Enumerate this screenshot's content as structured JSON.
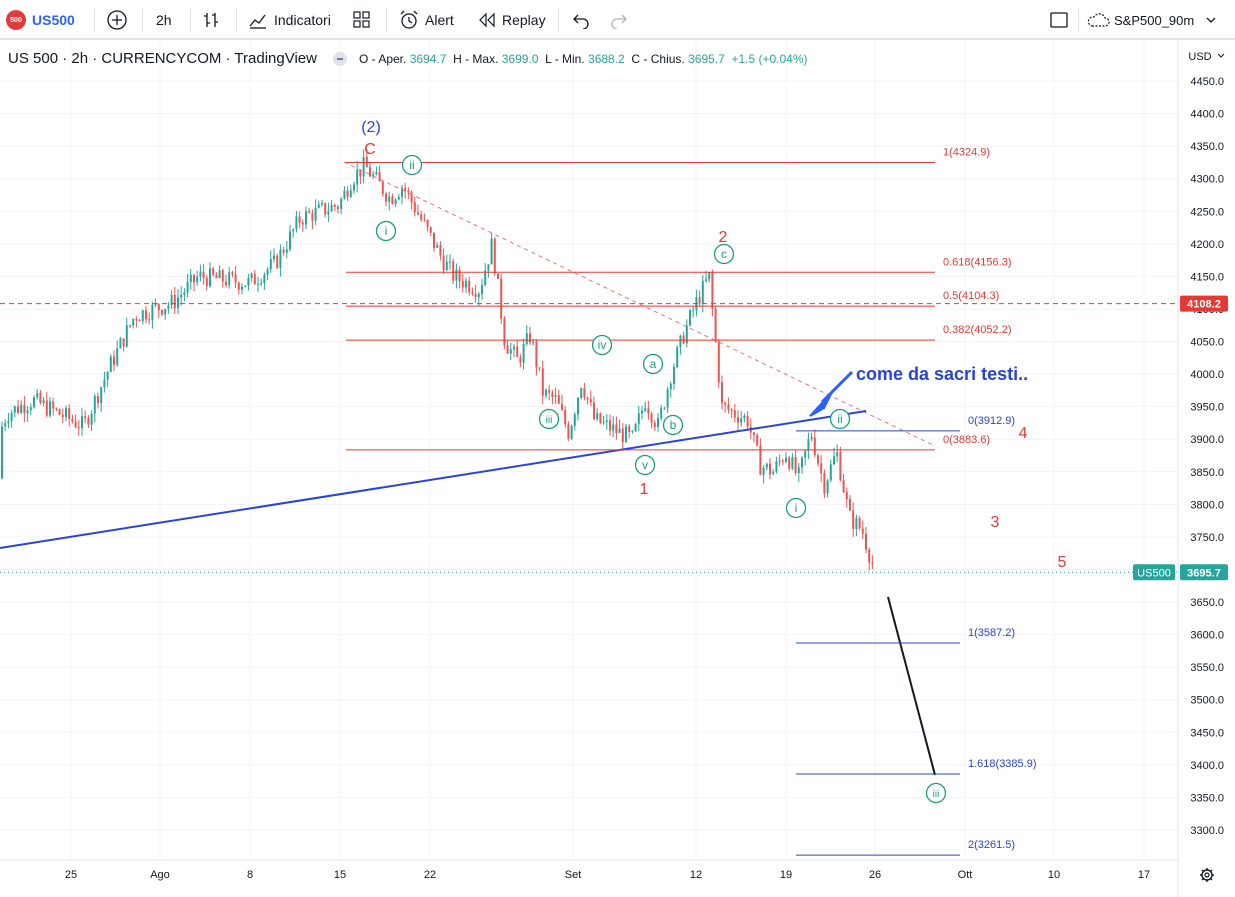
{
  "toolbar": {
    "logo_text": "500",
    "symbol": "US500",
    "interval": "2h",
    "indicators_label": "Indicatori",
    "alert_label": "Alert",
    "replay_label": "Replay",
    "layout_name": "S&P500_90m"
  },
  "legend": {
    "title": "US 500 · 2h · CURRENCYCOM · TradingView",
    "o_label": "O - Aper.",
    "o_value": "3694.7",
    "h_label": "H - Max.",
    "h_value": "3699.0",
    "l_label": "L - Min.",
    "l_value": "3688.2",
    "c_label": "C - Chius.",
    "c_value": "3695.7",
    "change": "+1.5 (+0.04%)"
  },
  "chart_data": {
    "type": "candlestick",
    "currency": "USD",
    "y_ticks": [
      4450.0,
      4400.0,
      4350.0,
      4300.0,
      4250.0,
      4200.0,
      4150.0,
      4100.0,
      4050.0,
      4000.0,
      3950.0,
      3900.0,
      3850.0,
      3800.0,
      3750.0,
      3700.0,
      3650.0,
      3600.0,
      3550.0,
      3500.0,
      3450.0,
      3400.0,
      3350.0,
      3300.0
    ],
    "x_ticks": [
      "25",
      "Ago",
      "8",
      "15",
      "22",
      "Set",
      "12",
      "19",
      "26",
      "Ott",
      "10",
      "17"
    ],
    "ylim": [
      3260,
      4460
    ],
    "price_path": [
      [
        "2022-07-18",
        3840
      ],
      [
        "2022-07-20",
        3940
      ],
      [
        "2022-07-22",
        3960
      ],
      [
        "2022-07-26",
        3920
      ],
      [
        "2022-07-28",
        4010
      ],
      [
        "2022-07-30",
        4090
      ],
      [
        "2022-08-02",
        4110
      ],
      [
        "2022-08-04",
        4150
      ],
      [
        "2022-08-08",
        4140
      ],
      [
        "2022-08-10",
        4170
      ],
      [
        "2022-08-12",
        4240
      ],
      [
        "2022-08-15",
        4260
      ],
      [
        "2022-08-16",
        4300
      ],
      [
        "2022-08-17",
        4320
      ],
      [
        "2022-08-19",
        4270
      ],
      [
        "2022-08-20",
        4290
      ],
      [
        "2022-08-23",
        4180
      ],
      [
        "2022-08-24",
        4150
      ],
      [
        "2022-08-26",
        4130
      ],
      [
        "2022-08-27",
        4200
      ],
      [
        "2022-08-28",
        4050
      ],
      [
        "2022-08-29",
        4020
      ],
      [
        "2022-08-30",
        4060
      ],
      [
        "2022-08-31",
        3970
      ],
      [
        "2022-09-01",
        3960
      ],
      [
        "2022-09-02",
        3910
      ],
      [
        "2022-09-03",
        3990
      ],
      [
        "2022-09-04",
        3930
      ],
      [
        "2022-09-06",
        3910
      ],
      [
        "2022-09-07",
        3900
      ],
      [
        "2022-09-08",
        3960
      ],
      [
        "2022-09-09",
        3920
      ],
      [
        "2022-09-10",
        4000
      ],
      [
        "2022-09-11",
        4060
      ],
      [
        "2022-09-12",
        4110
      ],
      [
        "2022-09-13",
        4150
      ],
      [
        "2022-09-14",
        3950
      ],
      [
        "2022-09-15",
        3940
      ],
      [
        "2022-09-16",
        3930
      ],
      [
        "2022-09-17",
        3860
      ],
      [
        "2022-09-18",
        3850
      ],
      [
        "2022-09-19",
        3880
      ],
      [
        "2022-09-20",
        3840
      ],
      [
        "2022-09-21",
        3910
      ],
      [
        "2022-09-22",
        3830
      ],
      [
        "2022-09-23",
        3880
      ],
      [
        "2022-09-24",
        3780
      ],
      [
        "2022-09-25",
        3760
      ],
      [
        "2022-09-26",
        3695.7
      ]
    ],
    "last_price": "3695.7",
    "last_price_tag": "US500",
    "alert_price": "4108.2",
    "fib_red": [
      {
        "label": "1(4324.9)",
        "price": 4324.9
      },
      {
        "label": "0.618(4156.3)",
        "price": 4156.3
      },
      {
        "label": "0.5(4104.3)",
        "price": 4104.3
      },
      {
        "label": "0.382(4052.2)",
        "price": 4052.2
      },
      {
        "label": "0(3883.6)",
        "price": 3883.6
      }
    ],
    "fib_blue": [
      {
        "label": "0(3912.9)",
        "price": 3912.9
      },
      {
        "label": "1(3587.2)",
        "price": 3587.2
      },
      {
        "label": "1.618(3385.9)",
        "price": 3385.9
      },
      {
        "label": "2(3261.5)",
        "price": 3261.5
      }
    ],
    "wave_labels_red": [
      "(2)",
      "C",
      "2",
      "1",
      "4",
      "3",
      "5"
    ],
    "wave_labels_circled": [
      "ii",
      "i",
      "iv",
      "iii",
      "a",
      "b",
      "v",
      "c",
      "i",
      "ii",
      "iii"
    ],
    "annotation": "come da sacri testi.."
  }
}
